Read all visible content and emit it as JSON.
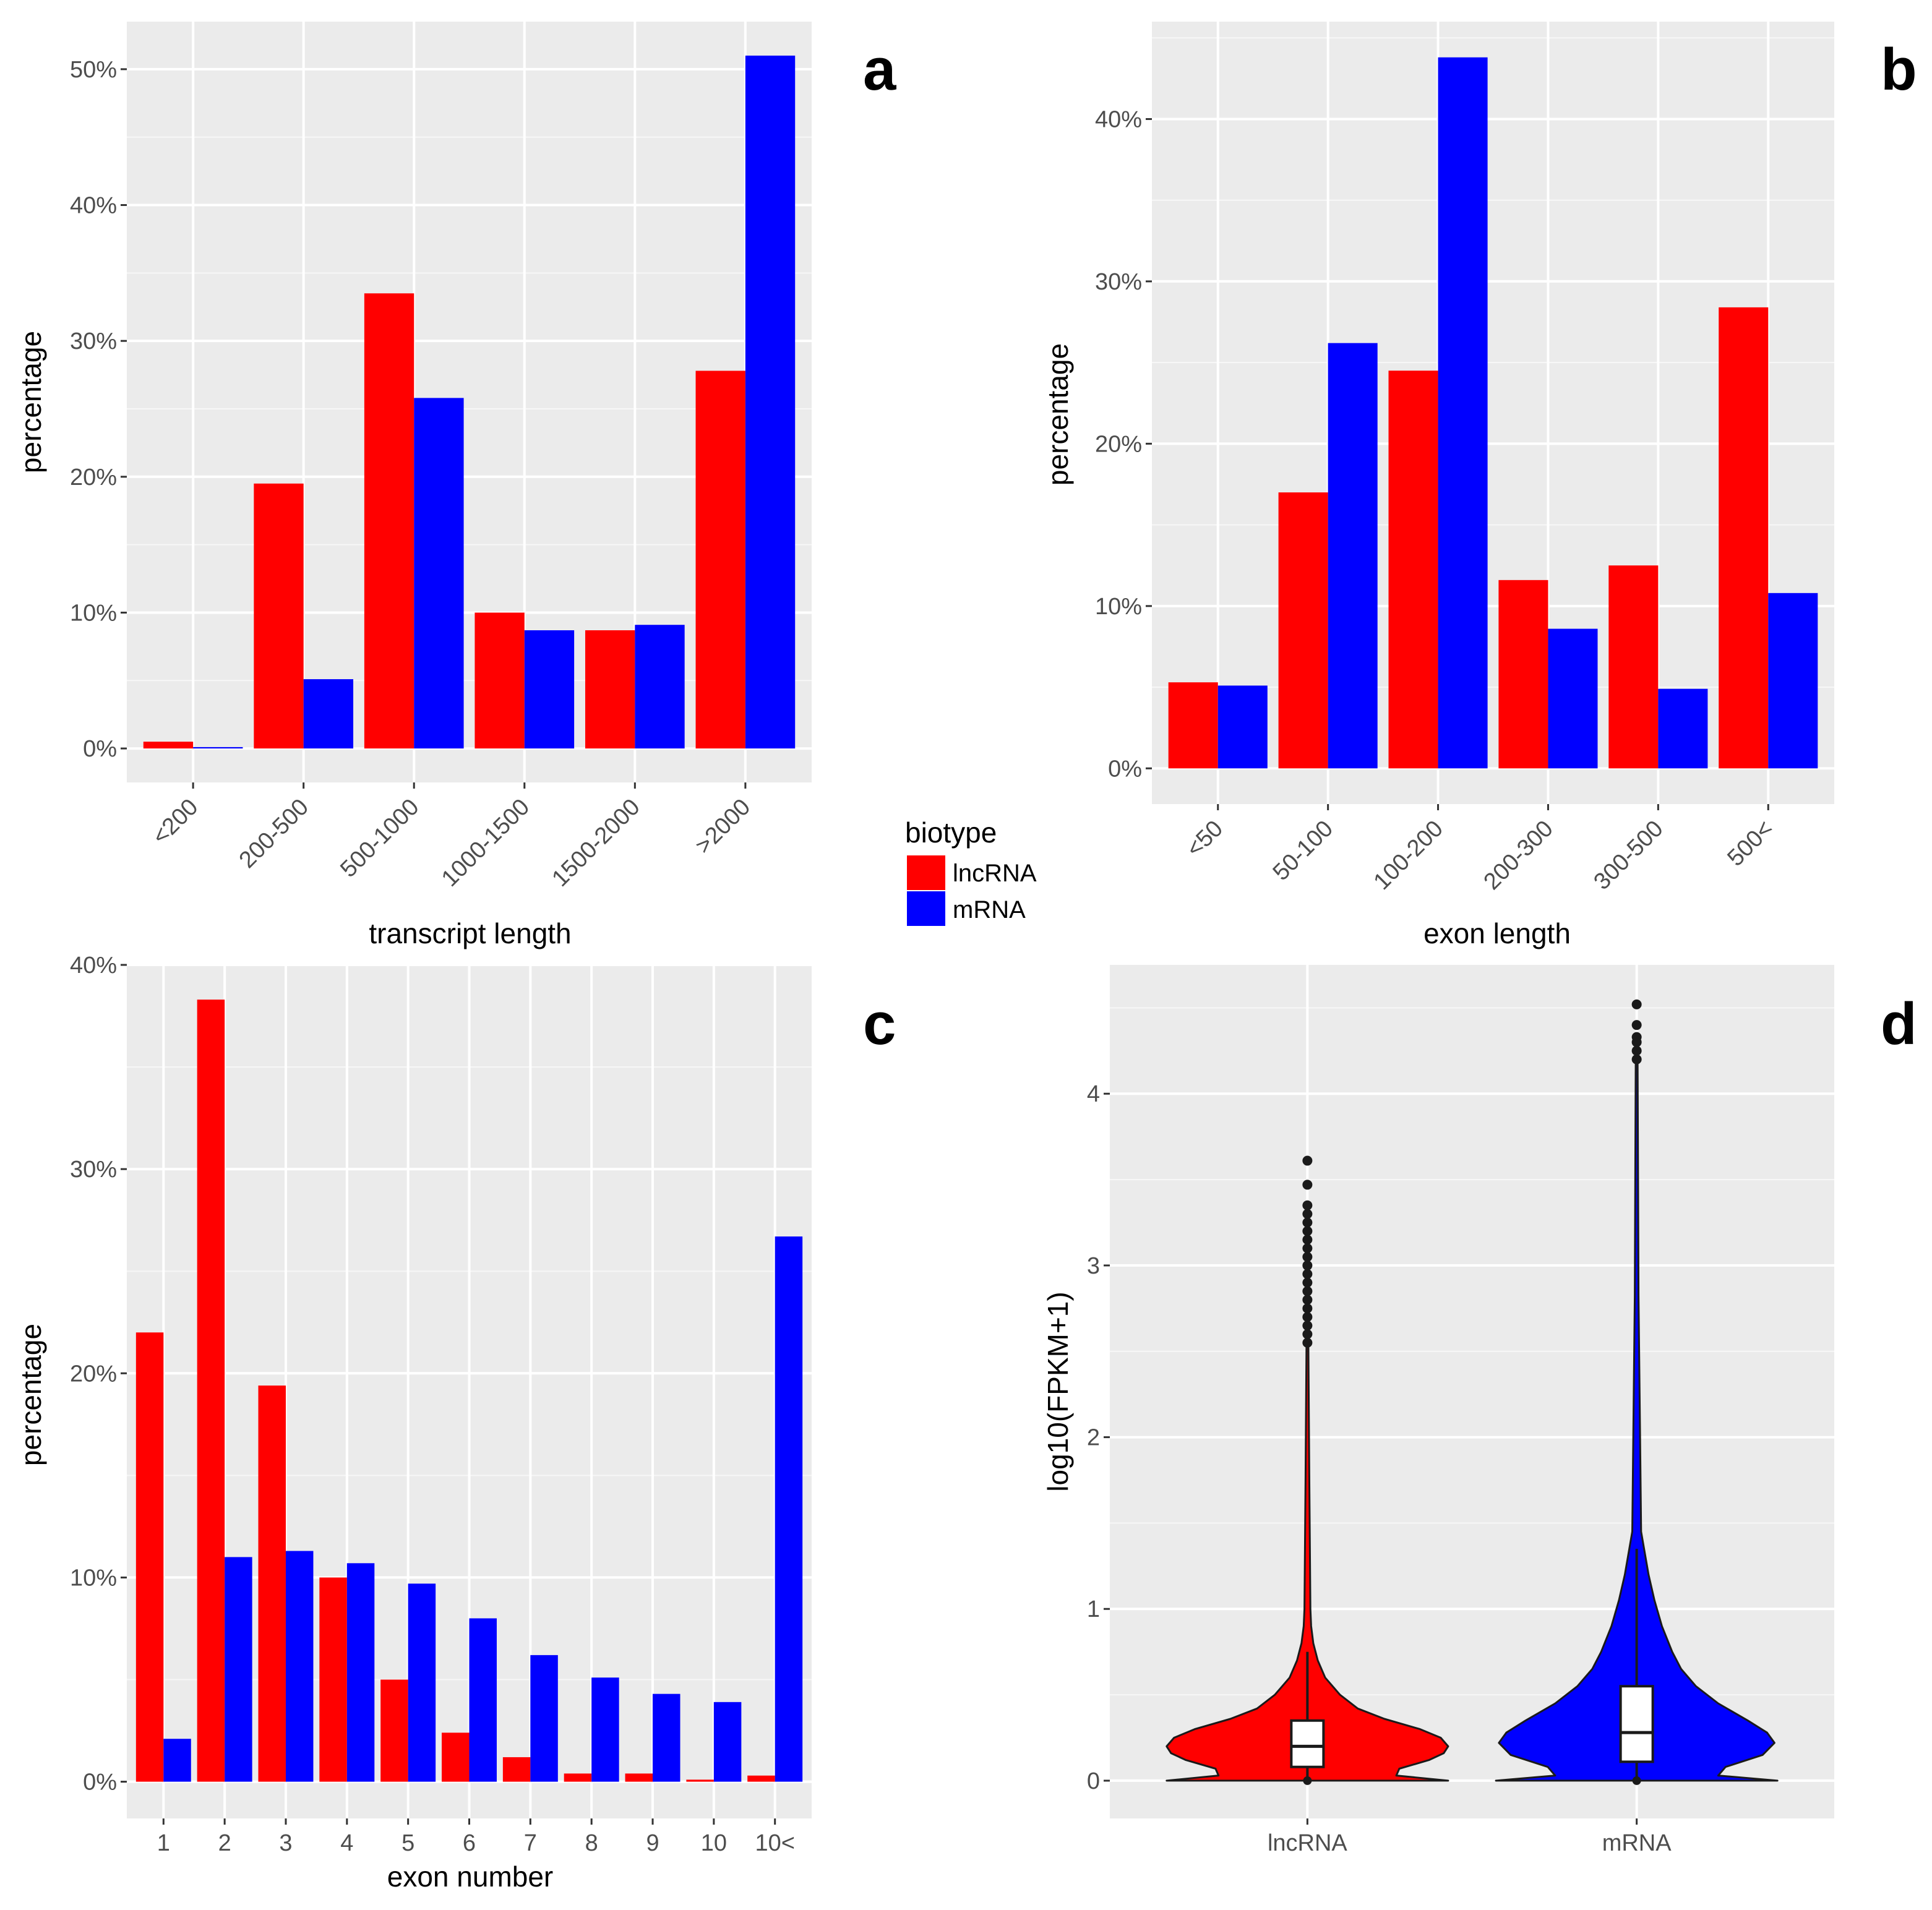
{
  "colors": {
    "panel_bg": "#EBEBEB",
    "grid": "#FFFFFF",
    "lncRNA": "#FF0000",
    "mRNA": "#0000FF",
    "outline": "#1A1A1A",
    "box_fill": "#FFFFFF"
  },
  "legend": {
    "title": "biotype",
    "items": [
      {
        "label": "lncRNA",
        "color": "#FF0000"
      },
      {
        "label": "mRNA",
        "color": "#0000FF"
      }
    ]
  },
  "chart_data": [
    {
      "panel": "a",
      "type": "bar",
      "xlabel": "transcript length",
      "ylabel": "percentage",
      "categories": [
        "<200",
        "200-500",
        "500-1000",
        "1000-1500",
        "1500-2000",
        ">2000"
      ],
      "series": [
        {
          "name": "lncRNA",
          "values": [
            0.5,
            19.5,
            33.5,
            10.0,
            8.7,
            27.8
          ]
        },
        {
          "name": "mRNA",
          "values": [
            0.1,
            5.1,
            25.8,
            8.7,
            9.1,
            51.0
          ]
        }
      ],
      "ylim": [
        -2.5,
        53.5
      ],
      "yticks": [
        0,
        10,
        20,
        30,
        40,
        50
      ],
      "yticklabels": [
        "0%",
        "10%",
        "20%",
        "30%",
        "40%",
        "50%"
      ],
      "xtick_rotation": 45
    },
    {
      "panel": "b",
      "type": "bar",
      "xlabel": "exon length",
      "ylabel": "percentage",
      "categories": [
        "<50",
        "50-100",
        "100-200",
        "200-300",
        "300-500",
        "500<"
      ],
      "series": [
        {
          "name": "lncRNA",
          "values": [
            5.3,
            17.0,
            24.5,
            11.6,
            12.5,
            28.4
          ]
        },
        {
          "name": "mRNA",
          "values": [
            5.1,
            26.2,
            43.8,
            8.6,
            4.9,
            10.8
          ]
        }
      ],
      "ylim": [
        -2.2,
        46.0
      ],
      "yticks": [
        0,
        10,
        20,
        30,
        40
      ],
      "yticklabels": [
        "0%",
        "10%",
        "20%",
        "30%",
        "40%"
      ],
      "xtick_rotation": 45
    },
    {
      "panel": "c",
      "type": "bar",
      "xlabel": "exon number",
      "ylabel": "percentage",
      "categories": [
        "1",
        "2",
        "3",
        "4",
        "5",
        "6",
        "7",
        "8",
        "9",
        "10",
        "10<"
      ],
      "series": [
        {
          "name": "lncRNA",
          "values": [
            22.0,
            38.3,
            19.4,
            10.0,
            5.0,
            2.4,
            1.2,
            0.4,
            0.4,
            0.1,
            0.3
          ]
        },
        {
          "name": "mRNA",
          "values": [
            2.1,
            11.0,
            11.3,
            10.7,
            9.7,
            8.0,
            6.2,
            5.1,
            4.3,
            3.9,
            26.7
          ]
        }
      ],
      "ylim": [
        -1.8,
        40.0
      ],
      "yticks": [
        0,
        10,
        20,
        30,
        40
      ],
      "yticklabels": [
        "0%",
        "10%",
        "20%",
        "30%",
        "40%"
      ],
      "xtick_rotation": 0
    },
    {
      "panel": "d",
      "type": "violin",
      "xlabel": "",
      "ylabel": "log10(FPKM+1)",
      "categories": [
        "lncRNA",
        "mRNA"
      ],
      "ylim": [
        -0.22,
        4.75
      ],
      "yticks": [
        0,
        1,
        2,
        3,
        4
      ],
      "yticklabels": [
        "0",
        "1",
        "2",
        "3",
        "4"
      ],
      "violins": [
        {
          "name": "lncRNA",
          "color": "#FF0000",
          "box": {
            "q1": 0.08,
            "median": 0.2,
            "q3": 0.35,
            "whisker_low": 0.0,
            "whisker_high": 0.75
          },
          "profile": [
            [
              0,
              0.95
            ],
            [
              0.03,
              0.6
            ],
            [
              0.07,
              0.62
            ],
            [
              0.12,
              0.82
            ],
            [
              0.16,
              0.92
            ],
            [
              0.2,
              0.95
            ],
            [
              0.25,
              0.9
            ],
            [
              0.3,
              0.76
            ],
            [
              0.36,
              0.52
            ],
            [
              0.42,
              0.34
            ],
            [
              0.5,
              0.22
            ],
            [
              0.6,
              0.12
            ],
            [
              0.7,
              0.07
            ],
            [
              0.8,
              0.04
            ],
            [
              0.9,
              0.025
            ],
            [
              1.0,
              0.02
            ]
          ],
          "tail_top": 2.55,
          "outliers": [
            2.55,
            2.6,
            2.65,
            2.7,
            2.75,
            2.8,
            2.85,
            2.9,
            2.95,
            3.0,
            3.05,
            3.1,
            3.15,
            3.2,
            3.25,
            3.3,
            3.35,
            3.47,
            3.61
          ]
        },
        {
          "name": "mRNA",
          "color": "#0000FF",
          "box": {
            "q1": 0.11,
            "median": 0.28,
            "q3": 0.55,
            "whisker_low": 0.0,
            "whisker_high": 1.35
          },
          "profile": [
            [
              0,
              0.95
            ],
            [
              0.03,
              0.55
            ],
            [
              0.08,
              0.6
            ],
            [
              0.15,
              0.85
            ],
            [
              0.22,
              0.93
            ],
            [
              0.28,
              0.88
            ],
            [
              0.35,
              0.75
            ],
            [
              0.45,
              0.55
            ],
            [
              0.55,
              0.4
            ],
            [
              0.65,
              0.3
            ],
            [
              0.75,
              0.24
            ],
            [
              0.9,
              0.17
            ],
            [
              1.05,
              0.12
            ],
            [
              1.2,
              0.08
            ],
            [
              1.35,
              0.05
            ],
            [
              1.45,
              0.03
            ]
          ],
          "tail_top": 4.2,
          "outliers": [
            4.2,
            4.25,
            4.3,
            4.33,
            4.4,
            4.52
          ]
        }
      ]
    }
  ]
}
